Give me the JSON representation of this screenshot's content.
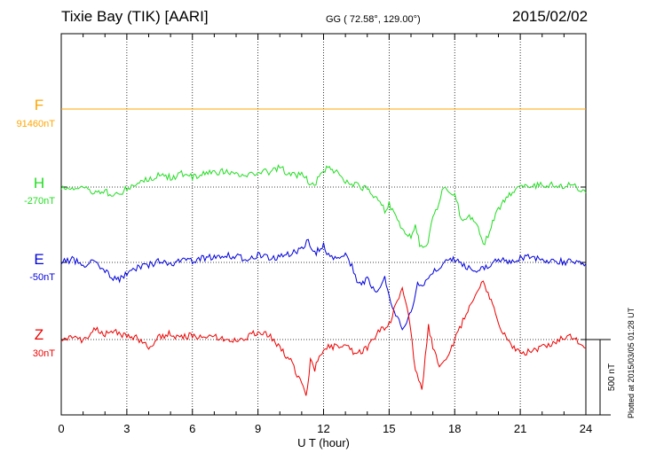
{
  "header": {
    "station": "Tixie Bay (TIK)  [AARI]",
    "coords": "GG ( 72.58°, 129.00°)",
    "date": "2015/02/02"
  },
  "footer": {
    "plotted": "Plotted at 2015/03/05 01:28 UT"
  },
  "colors": {
    "F": "#ffa500",
    "H": "#22dd22",
    "E": "#0000dd",
    "Z": "#ee0000"
  },
  "chart_data": {
    "type": "line",
    "xlabel": "U T (hour)",
    "xlim": [
      0,
      24
    ],
    "x_ticks": [
      "0",
      "3",
      "6",
      "9",
      "12",
      "15",
      "18",
      "21",
      "24"
    ],
    "scale_bar_label": "500 nT",
    "series": [
      {
        "name": "F",
        "baseline_label": "91460nT",
        "x": [
          0,
          24
        ],
        "y": [
          0,
          0
        ]
      },
      {
        "name": "H",
        "baseline_label": "-270nT",
        "x": [
          0,
          0.5,
          1,
          1.5,
          2,
          2.3,
          2.6,
          3,
          3.5,
          4,
          4.5,
          5,
          5.5,
          6,
          6.5,
          7,
          7.5,
          8,
          8.5,
          9,
          9.5,
          10,
          10.5,
          11,
          11.5,
          11.8,
          12.2,
          12.6,
          13,
          13.5,
          14,
          14.5,
          14.8,
          15,
          15.3,
          15.6,
          16,
          16.2,
          16.4,
          16.7,
          17,
          17.2,
          17.5,
          17.8,
          18,
          18.3,
          18.6,
          19,
          19.3,
          19.6,
          20,
          20.5,
          21,
          21.5,
          22,
          22.5,
          23,
          23.5,
          24
        ],
        "y": [
          0,
          -10,
          5,
          -40,
          -20,
          -80,
          -50,
          -10,
          20,
          60,
          80,
          65,
          90,
          70,
          90,
          100,
          110,
          90,
          70,
          110,
          100,
          140,
          80,
          90,
          10,
          60,
          150,
          100,
          40,
          20,
          -20,
          -90,
          -160,
          -120,
          -180,
          -300,
          -350,
          -250,
          -400,
          -420,
          -200,
          -150,
          0,
          -60,
          -40,
          -220,
          -200,
          -250,
          -400,
          -300,
          -150,
          -50,
          20,
          10,
          15,
          20,
          10,
          5,
          -40
        ]
      },
      {
        "name": "E",
        "baseline_label": "-50nT",
        "x": [
          0,
          0.5,
          1,
          1.5,
          2,
          2.3,
          2.6,
          3,
          3.5,
          4,
          4.5,
          5,
          5.5,
          6,
          6.5,
          7,
          7.5,
          8,
          8.5,
          9,
          9.5,
          10,
          10.5,
          11,
          11.3,
          11.6,
          12,
          12.3,
          12.6,
          13,
          13.3,
          13.6,
          14,
          14.4,
          14.8,
          15,
          15.3,
          15.6,
          16,
          16.3,
          16.6,
          17,
          17.3,
          17.6,
          18,
          18.5,
          19,
          19.5,
          20,
          20.5,
          21,
          21.5,
          22,
          22.5,
          23,
          23.5,
          24
        ],
        "y": [
          0,
          20,
          -20,
          10,
          -60,
          -100,
          -120,
          -80,
          -40,
          -20,
          10,
          -10,
          20,
          10,
          30,
          40,
          50,
          40,
          20,
          50,
          30,
          40,
          60,
          100,
          150,
          60,
          120,
          30,
          40,
          50,
          -20,
          -150,
          -120,
          -200,
          -100,
          -250,
          -360,
          -450,
          -350,
          -150,
          -160,
          -60,
          -30,
          10,
          20,
          -30,
          -50,
          -20,
          20,
          10,
          30,
          40,
          20,
          10,
          5,
          0,
          -10
        ]
      },
      {
        "name": "Z",
        "baseline_label": "30nT",
        "x": [
          0,
          0.5,
          1,
          1.5,
          2,
          2.5,
          3,
          3.5,
          4,
          4.5,
          5,
          5.5,
          6,
          6.5,
          7,
          7.5,
          8,
          8.5,
          9,
          9.5,
          10,
          10.5,
          11,
          11.2,
          11.4,
          11.6,
          12,
          12.5,
          13,
          13.5,
          14,
          14.5,
          15,
          15.3,
          15.6,
          15.9,
          16.2,
          16.5,
          16.8,
          17,
          17.3,
          17.6,
          18,
          18.3,
          18.6,
          19,
          19.3,
          19.6,
          20,
          20.5,
          21,
          21.5,
          22,
          22.5,
          23,
          23.5,
          24
        ],
        "y": [
          0,
          20,
          -10,
          70,
          40,
          50,
          20,
          10,
          -50,
          20,
          40,
          10,
          30,
          5,
          20,
          0,
          -10,
          20,
          50,
          30,
          -50,
          -150,
          -300,
          -400,
          -150,
          -200,
          -60,
          -50,
          -30,
          -100,
          -60,
          50,
          100,
          250,
          350,
          150,
          -200,
          -350,
          100,
          -50,
          -200,
          -150,
          0,
          100,
          200,
          300,
          400,
          300,
          100,
          -20,
          -100,
          -80,
          -50,
          -20,
          20,
          10,
          -60
        ]
      }
    ]
  }
}
